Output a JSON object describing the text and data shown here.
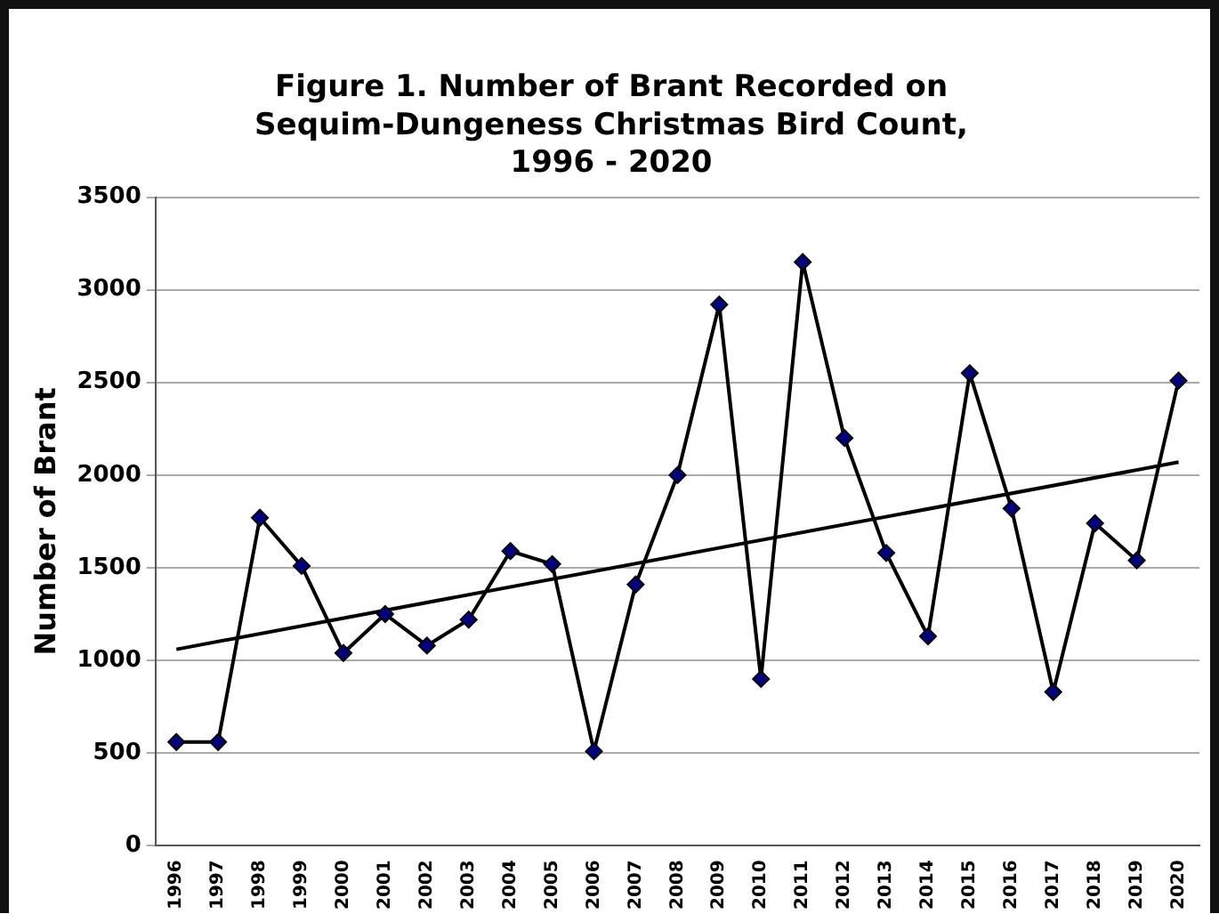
{
  "chart_data": {
    "type": "line",
    "title": "Figure 1. Number of Brant Recorded on\nSequim-Dungeness Christmas Bird Count,\n1996 - 2020",
    "ylabel": "Number of Brant",
    "x": [
      1996,
      1997,
      1998,
      1999,
      2000,
      2001,
      2002,
      2003,
      2004,
      2005,
      2006,
      2007,
      2008,
      2009,
      2010,
      2011,
      2012,
      2013,
      2014,
      2015,
      2016,
      2017,
      2018,
      2019,
      2020
    ],
    "series": [
      {
        "color": "#000080",
        "values": [
          560,
          560,
          1770,
          1510,
          1040,
          1250,
          1080,
          1220,
          1590,
          1520,
          510,
          1410,
          2000,
          2920,
          900,
          3150,
          2200,
          1580,
          1130,
          2550,
          1820,
          830,
          1740,
          1540,
          2510
        ]
      },
      {
        "type": "line",
        "color": "#000000",
        "marker": "none",
        "x": [
          1996,
          2020
        ],
        "values": [
          1060,
          2070
        ]
      }
    ],
    "xlim": [
      1995.5,
      2020.5
    ],
    "xticks": [
      1996,
      1997,
      1998,
      1999,
      2000,
      2001,
      2002,
      2003,
      2004,
      2005,
      2006,
      2007,
      2008,
      2009,
      2010,
      2011,
      2012,
      2013,
      2014,
      2015,
      2016,
      2017,
      2018,
      2019,
      2020
    ],
    "ylim": [
      0,
      3500
    ],
    "yticks": [
      0,
      500,
      1000,
      1500,
      2000,
      2500,
      3000,
      3500
    ],
    "grid": "y",
    "legend": false,
    "marker": "diamond",
    "line_style": "solid"
  }
}
